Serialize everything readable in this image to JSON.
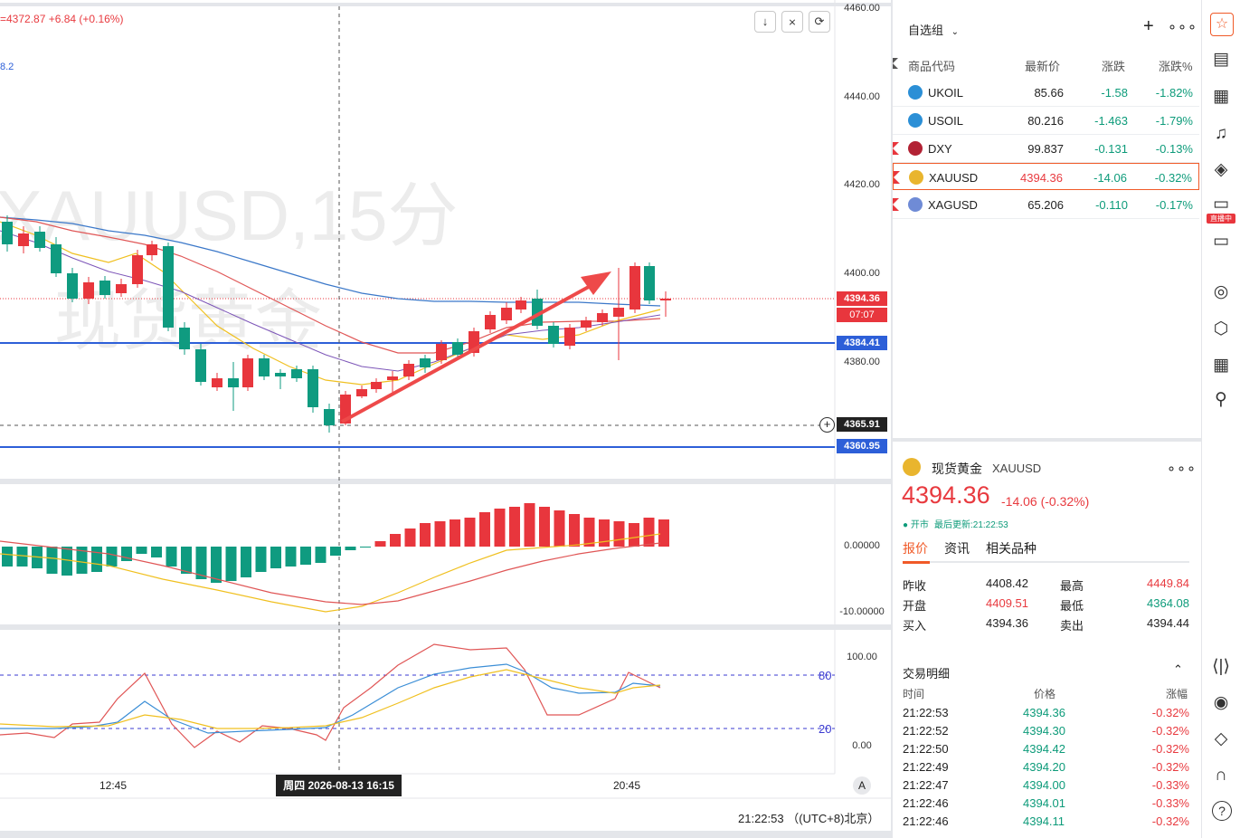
{
  "chart": {
    "watermark_symbol": "XAUUSD,15分",
    "watermark_name": "现货黄金",
    "legend_price": "=4372.87",
    "legend_change": "+6.84 (+0.16%)",
    "legend_secondary": "8.2",
    "toolbar": {
      "download_icon": "download-icon",
      "collapse_icon": "collapse-icon",
      "refresh_icon": "refresh-icon"
    },
    "price_axis_labels": [
      "4460.00",
      "4440.00",
      "4420.00",
      "4400.00",
      "4380.00"
    ],
    "macd_axis_labels": [
      "0.00000",
      "-10.00000"
    ],
    "kdj_axis_labels": [
      "100.00",
      "80",
      "20",
      "0.00"
    ],
    "current_price_tag": "4394.36",
    "countdown_tag": "07:07",
    "line_tag_1": "4384.41",
    "crosshair_tag": "4365.91",
    "line_tag_2": "4360.95",
    "time_labels": [
      "12:45",
      "20:45"
    ],
    "crosshair_time": "周四 2026-08-13  16:15",
    "auto_button": "A",
    "clock": "21:22:53 （(UTC+8)北京）"
  },
  "watchlist": {
    "group_title": "自选组",
    "headers": {
      "code": "商品代码",
      "last": "最新价",
      "change": "涨跌",
      "change_pct": "涨跌%"
    },
    "rows": [
      {
        "symbol": "UKOIL",
        "last": "85.66",
        "change": "-1.58",
        "pct": "-1.82%",
        "flag": false,
        "icon_color": "#2b8fd6",
        "highlight": false
      },
      {
        "symbol": "USOIL",
        "last": "80.216",
        "change": "-1.463",
        "pct": "-1.79%",
        "flag": false,
        "icon_color": "#2b8fd6",
        "highlight": false
      },
      {
        "symbol": "DXY",
        "last": "99.837",
        "change": "-0.131",
        "pct": "-0.13%",
        "flag": true,
        "icon_color": "#b22234",
        "highlight": false
      },
      {
        "symbol": "XAUUSD",
        "last": "4394.36",
        "change": "-14.06",
        "pct": "-0.32%",
        "flag": true,
        "icon_color": "#e9b52e",
        "highlight": true
      },
      {
        "symbol": "XAGUSD",
        "last": "65.206",
        "change": "-0.110",
        "pct": "-0.17%",
        "flag": true,
        "icon_color": "#6f8bd6",
        "highlight": false
      }
    ]
  },
  "detail": {
    "name": "现货黄金",
    "symbol": "XAUUSD",
    "price": "4394.36",
    "change": "-14.06 (-0.32%)",
    "status": "● 开市",
    "updated": "最后更新:21:22:53",
    "tabs": [
      "报价",
      "资讯",
      "相关品种"
    ],
    "stats": [
      {
        "l1": "昨收",
        "v1": "4408.42",
        "l2": "最高",
        "v2": "4449.84",
        "c1": "#222",
        "c2": "#e83a3f"
      },
      {
        "l1": "开盘",
        "v1": "4409.51",
        "l2": "最低",
        "v2": "4364.08",
        "c1": "#e83a3f",
        "c2": "#0d9b7a"
      },
      {
        "l1": "买入",
        "v1": "4394.36",
        "l2": "卖出",
        "v2": "4394.44",
        "c1": "#222",
        "c2": "#222"
      }
    ],
    "trades_title": "交易明细",
    "trade_headers": {
      "time": "时间",
      "price": "价格",
      "change": "涨幅"
    },
    "trades": [
      {
        "time": "21:22:53",
        "price": "4394.36",
        "change": "-0.32%"
      },
      {
        "time": "21:22:52",
        "price": "4394.30",
        "change": "-0.32%"
      },
      {
        "time": "21:22:50",
        "price": "4394.42",
        "change": "-0.32%"
      },
      {
        "time": "21:22:49",
        "price": "4394.20",
        "change": "-0.32%"
      },
      {
        "time": "21:22:47",
        "price": "4394.00",
        "change": "-0.33%"
      },
      {
        "time": "21:22:46",
        "price": "4394.01",
        "change": "-0.33%"
      },
      {
        "time": "21:22:46",
        "price": "4394.11",
        "change": "-0.32%"
      }
    ]
  },
  "iconbar": {
    "live_badge": "直播中"
  },
  "colors": {
    "up": "#e8363d",
    "down": "#0f9b80",
    "blue": "#2d5fd8",
    "accent": "#f05a28"
  }
}
